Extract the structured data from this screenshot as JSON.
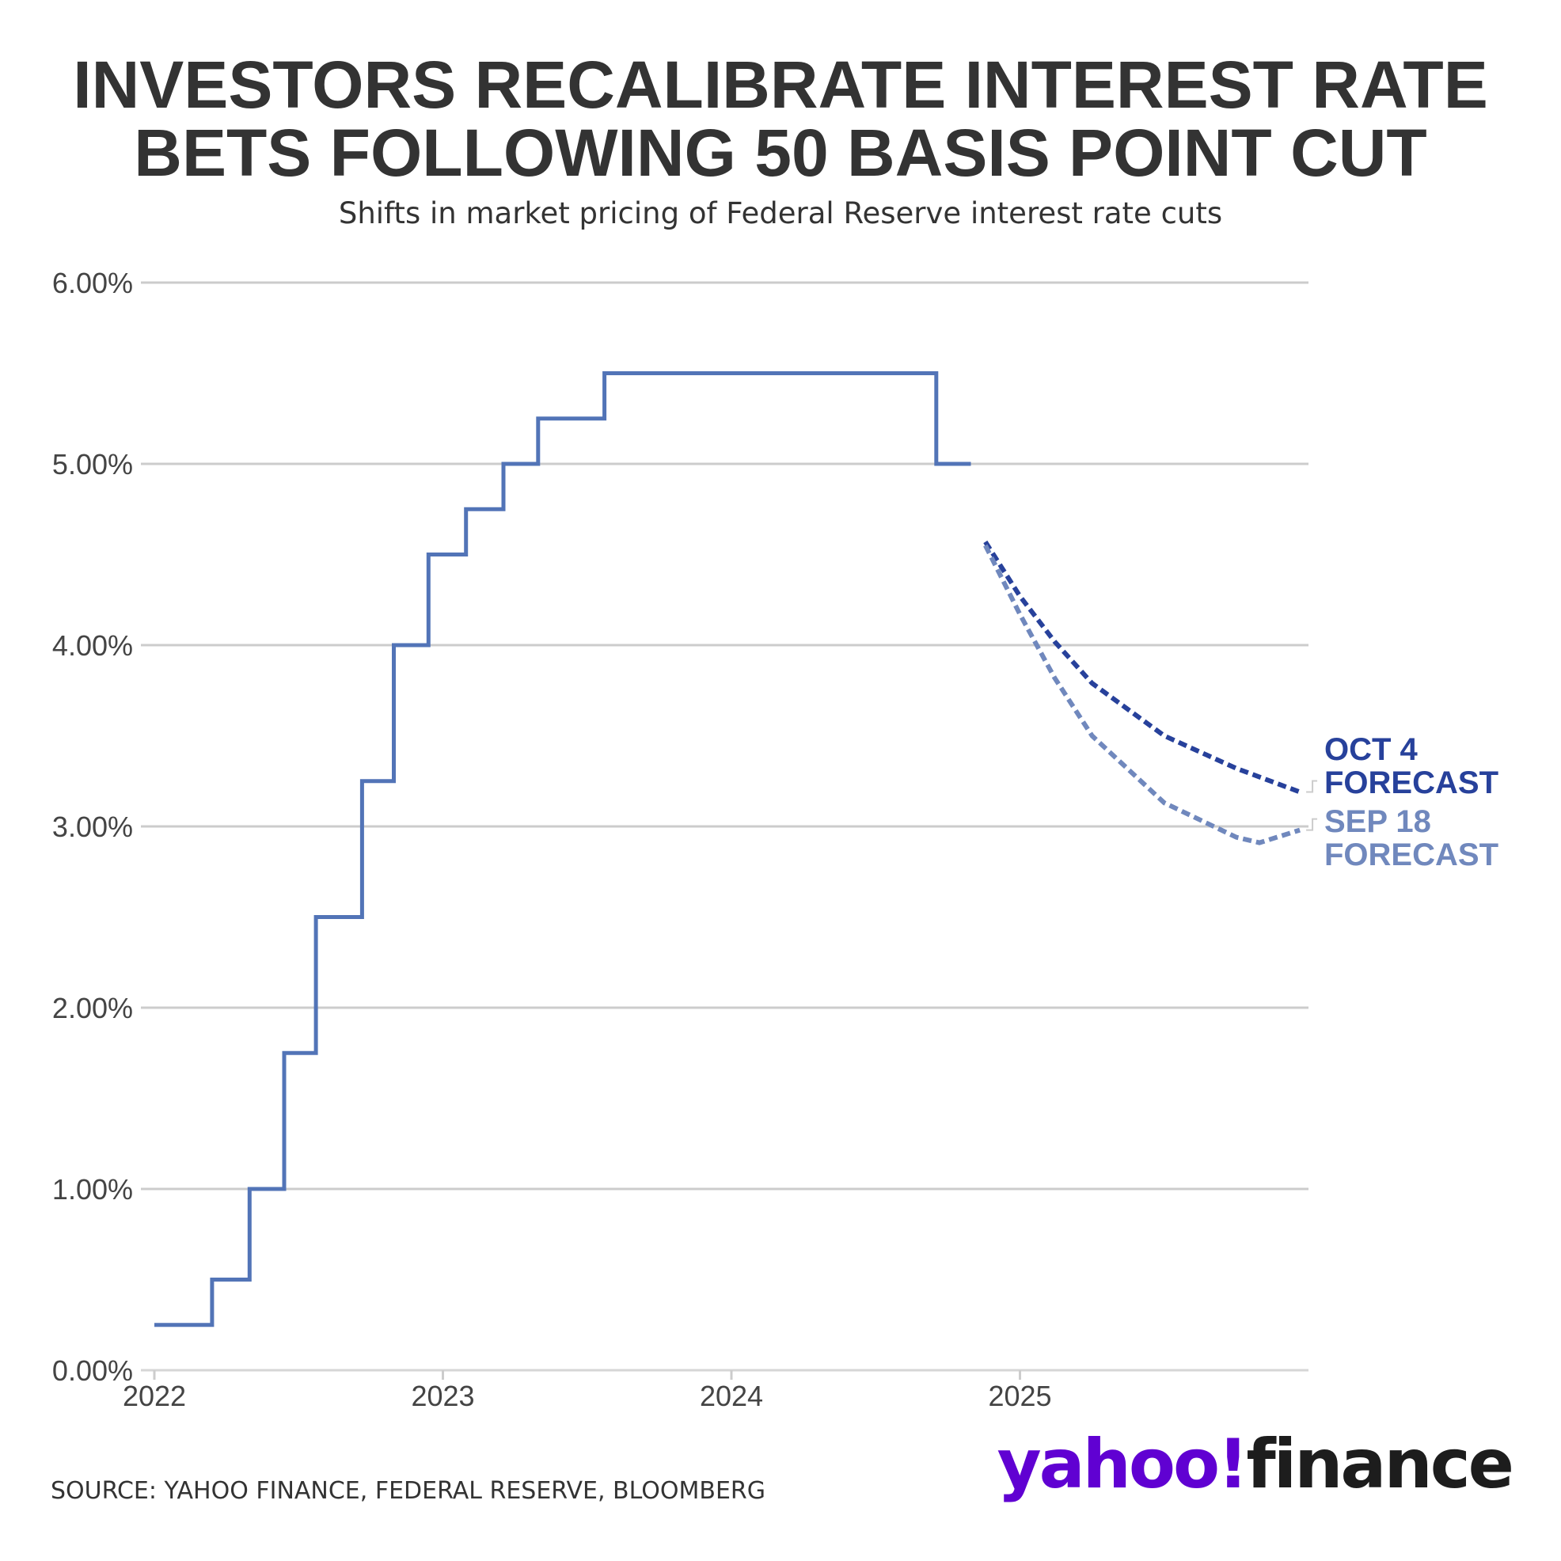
{
  "title_lines": [
    "INVESTORS RECALIBRATE INTEREST RATE",
    "BETS FOLLOWING 50 BASIS POINT CUT"
  ],
  "subtitle": "Shifts in market pricing of Federal Reserve interest rate cuts",
  "source": "SOURCE: YAHOO FINANCE, FEDERAL RESERVE, BLOOMBERG",
  "brand": {
    "part1": "yahoo",
    "mark": "!",
    "part2": "finance"
  },
  "colors": {
    "actual": "#5274b7",
    "oct4": "#27419b",
    "sep18": "#7088bd",
    "grid": "#cccccc",
    "text": "#333333",
    "yahoo_purple": "#6001d2"
  },
  "chart_data": {
    "type": "line",
    "x_axis": {
      "min": 2022.0,
      "max": 2026.0,
      "ticks": [
        2022,
        2023,
        2024,
        2025
      ],
      "tick_labels": [
        "2022",
        "2023",
        "2024",
        "2025"
      ]
    },
    "y_axis": {
      "min": 0,
      "max": 6,
      "ticks": [
        0,
        1,
        2,
        3,
        4,
        5,
        6
      ],
      "tick_labels": [
        "0.00%",
        "1.00%",
        "2.00%",
        "3.00%",
        "4.00%",
        "5.00%",
        "6.00%"
      ]
    },
    "grid": true,
    "series": [
      {
        "key": "actual",
        "style": "step",
        "points": [
          [
            2022.0,
            0.25
          ],
          [
            2022.2,
            0.25
          ],
          [
            2022.2,
            0.5
          ],
          [
            2022.33,
            0.5
          ],
          [
            2022.33,
            1.0
          ],
          [
            2022.45,
            1.0
          ],
          [
            2022.45,
            1.75
          ],
          [
            2022.56,
            1.75
          ],
          [
            2022.56,
            2.5
          ],
          [
            2022.72,
            2.5
          ],
          [
            2022.72,
            3.25
          ],
          [
            2022.83,
            3.25
          ],
          [
            2022.83,
            4.0
          ],
          [
            2022.95,
            4.0
          ],
          [
            2022.95,
            4.5
          ],
          [
            2023.08,
            4.5
          ],
          [
            2023.08,
            4.75
          ],
          [
            2023.21,
            4.75
          ],
          [
            2023.21,
            5.0
          ],
          [
            2023.33,
            5.0
          ],
          [
            2023.33,
            5.25
          ],
          [
            2023.56,
            5.25
          ],
          [
            2023.56,
            5.5
          ],
          [
            2024.71,
            5.5
          ],
          [
            2024.71,
            5.0
          ],
          [
            2024.83,
            5.0
          ]
        ]
      },
      {
        "key": "oct4",
        "name": "OCT 4 FORECAST",
        "label_lines": [
          "OCT 4",
          "FORECAST"
        ],
        "style": "dashed",
        "points": [
          [
            2024.88,
            4.57
          ],
          [
            2025.0,
            4.27
          ],
          [
            2025.12,
            4.02
          ],
          [
            2025.25,
            3.79
          ],
          [
            2025.5,
            3.5
          ],
          [
            2025.75,
            3.32
          ],
          [
            2025.97,
            3.19
          ]
        ]
      },
      {
        "key": "sep18",
        "name": "SEP 18 FORECAST",
        "label_lines": [
          "SEP 18",
          "FORECAST"
        ],
        "style": "dashed",
        "points": [
          [
            2024.88,
            4.55
          ],
          [
            2025.0,
            4.17
          ],
          [
            2025.12,
            3.82
          ],
          [
            2025.25,
            3.5
          ],
          [
            2025.5,
            3.13
          ],
          [
            2025.75,
            2.94
          ],
          [
            2025.83,
            2.91
          ],
          [
            2025.97,
            2.98
          ]
        ]
      }
    ]
  }
}
